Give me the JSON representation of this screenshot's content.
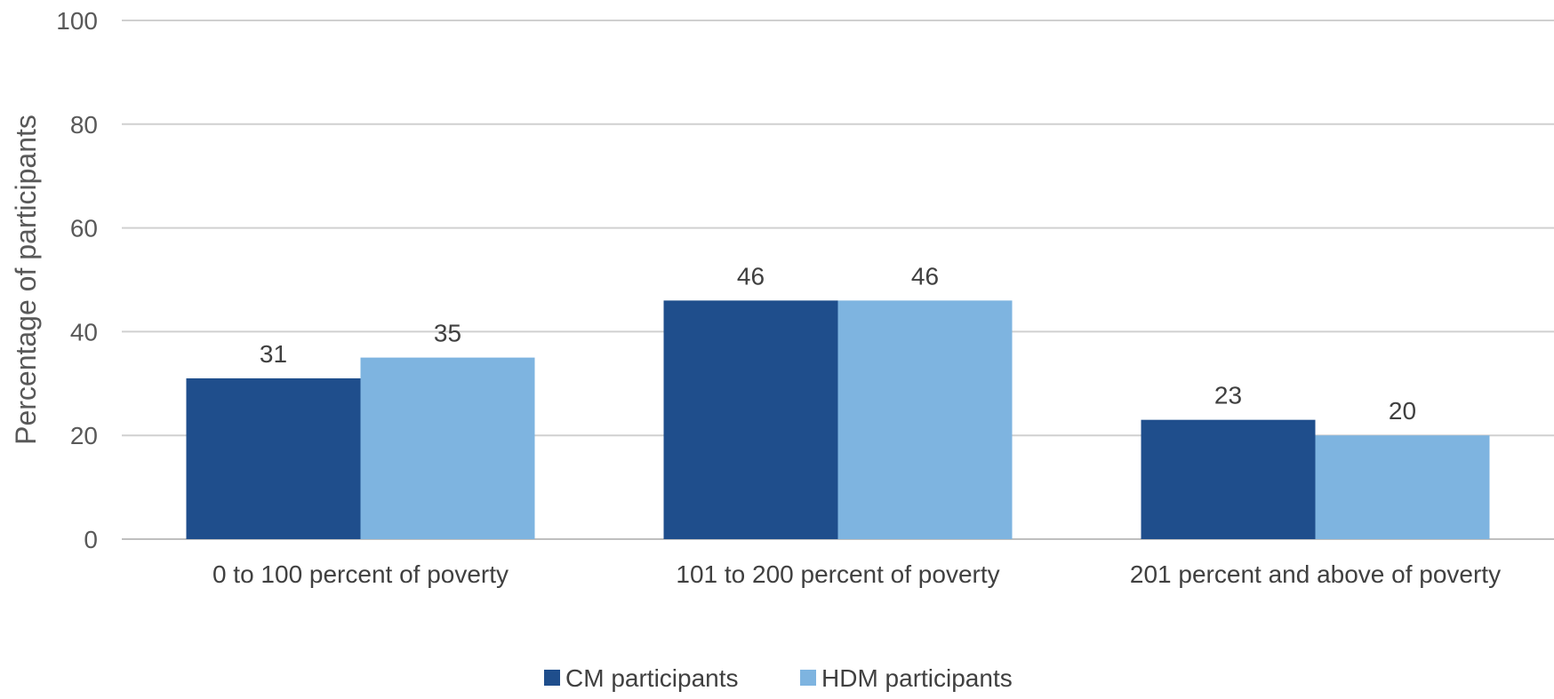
{
  "chart_data": {
    "type": "bar",
    "title": "",
    "xlabel": "",
    "ylabel": "Percentage of participants",
    "ylim": [
      0,
      100
    ],
    "yticks": [
      0,
      20,
      40,
      60,
      80,
      100
    ],
    "grid": true,
    "legend_position": "bottom",
    "categories": [
      "0 to 100 percent of poverty",
      "101 to 200 percent of poverty",
      "201 percent and above of poverty"
    ],
    "series": [
      {
        "name": "CM participants",
        "values": [
          31,
          46,
          23
        ],
        "color": "#1f4e8c"
      },
      {
        "name": "HDM participants",
        "values": [
          35,
          46,
          20
        ],
        "color": "#7eb4e0"
      }
    ]
  }
}
